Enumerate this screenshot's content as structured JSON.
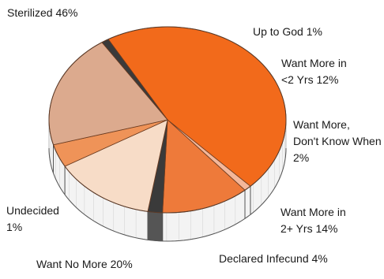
{
  "chart_data": {
    "type": "pie",
    "style": "3d",
    "slices": [
      {
        "label": "Sterilized",
        "value": 46,
        "color": "#f26a1b"
      },
      {
        "label": "Up to God",
        "value": 1,
        "color": "#f4b79a"
      },
      {
        "label": "Want More in <2 Yrs",
        "value": 12,
        "color": "#ee7a3a"
      },
      {
        "label": "Want More, Don't Know When",
        "value": 2,
        "color": "#3a3a3a"
      },
      {
        "label": "Want More in 2+ Yrs",
        "value": 14,
        "color": "#f7dcc7"
      },
      {
        "label": "Declared Infecund",
        "value": 4,
        "color": "#ef9358"
      },
      {
        "label": "Want No More",
        "value": 20,
        "color": "#dcaa8e"
      },
      {
        "label": "Undecided",
        "value": 1,
        "color": "#3a3a3a"
      }
    ]
  },
  "labels": {
    "sterilized": [
      "Sterilized  46%"
    ],
    "up_to_god": [
      "Up to God  1%"
    ],
    "want_more_lt2": [
      "Want More in",
      "<2 Yrs  12%"
    ],
    "want_more_dk": [
      "Want More,",
      "Don't Know When",
      "2%"
    ],
    "want_more_2plus": [
      "Want More in",
      "2+ Yrs  14%"
    ],
    "declared_infecund": [
      "Declared Infecund  4%"
    ],
    "want_no_more": [
      "Want No More  20%"
    ],
    "undecided": [
      "Undecided",
      "1%"
    ]
  }
}
